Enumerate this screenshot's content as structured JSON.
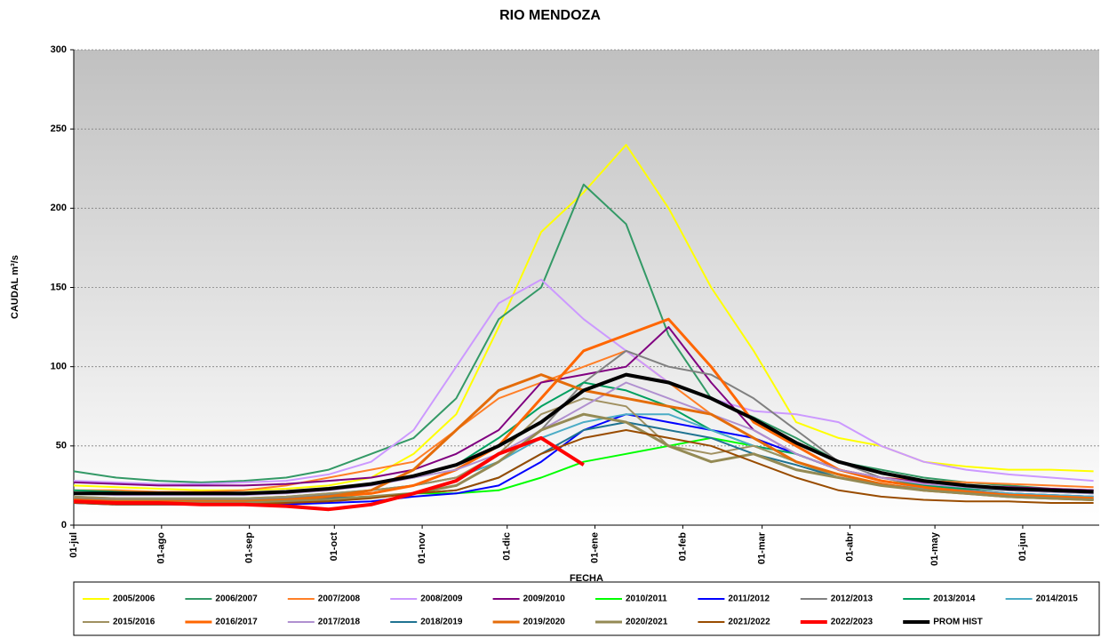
{
  "chart_data": {
    "type": "line",
    "title": "RIO MENDOZA",
    "x_label": "FECHA",
    "y_label": "CAUDAL m³/s",
    "x": [
      0,
      15,
      30,
      45,
      60,
      75,
      90,
      105,
      120,
      135,
      150,
      165,
      180,
      195,
      210,
      225,
      240,
      255,
      270,
      285,
      300,
      315,
      330,
      345,
      360
    ],
    "xlim": [
      0,
      362
    ],
    "xticks": [
      {
        "value": 0,
        "label": "01-jul"
      },
      {
        "value": 31,
        "label": "01-ago"
      },
      {
        "value": 62,
        "label": "01-sep"
      },
      {
        "value": 92,
        "label": "01-oct"
      },
      {
        "value": 123,
        "label": "01-nov"
      },
      {
        "value": 153,
        "label": "01-dic"
      },
      {
        "value": 184,
        "label": "01-ene"
      },
      {
        "value": 215,
        "label": "01-feb"
      },
      {
        "value": 243,
        "label": "01-mar"
      },
      {
        "value": 274,
        "label": "01-abr"
      },
      {
        "value": 304,
        "label": "01-may"
      },
      {
        "value": 335,
        "label": "01-jun"
      }
    ],
    "ylim": [
      0,
      300
    ],
    "yticks": [
      0,
      50,
      100,
      150,
      200,
      250,
      300
    ],
    "grid": true,
    "series": [
      {
        "name": "2005/2006",
        "color": "#ffff00",
        "width": 2,
        "values": [
          25,
          24,
          23,
          22,
          22,
          23,
          25,
          30,
          45,
          70,
          125,
          185,
          210,
          240,
          200,
          150,
          110,
          65,
          55,
          50,
          40,
          37,
          35,
          35,
          34
        ]
      },
      {
        "name": "2006/2007",
        "color": "#339966",
        "width": 2,
        "values": [
          34,
          30,
          28,
          27,
          28,
          30,
          35,
          45,
          55,
          80,
          130,
          150,
          215,
          190,
          120,
          80,
          68,
          55,
          40,
          35,
          30,
          27,
          25,
          23,
          22
        ]
      },
      {
        "name": "2007/2008",
        "color": "#ff7f27",
        "width": 2,
        "values": [
          22,
          22,
          21,
          21,
          22,
          25,
          30,
          35,
          40,
          60,
          80,
          90,
          100,
          110,
          90,
          70,
          55,
          45,
          35,
          30,
          28,
          27,
          26,
          25,
          24
        ]
      },
      {
        "name": "2008/2009",
        "color": "#cc99ff",
        "width": 2,
        "values": [
          28,
          27,
          26,
          26,
          27,
          28,
          32,
          40,
          60,
          100,
          140,
          155,
          130,
          110,
          90,
          80,
          72,
          70,
          65,
          50,
          40,
          35,
          32,
          30,
          28
        ]
      },
      {
        "name": "2009/2010",
        "color": "#800080",
        "width": 2,
        "values": [
          27,
          26,
          25,
          25,
          25,
          26,
          28,
          30,
          35,
          45,
          60,
          90,
          95,
          100,
          125,
          90,
          60,
          45,
          35,
          30,
          27,
          25,
          24,
          23,
          22
        ]
      },
      {
        "name": "2010/2011",
        "color": "#00ff00",
        "width": 2,
        "values": [
          15,
          14,
          14,
          14,
          14,
          15,
          17,
          18,
          20,
          20,
          22,
          30,
          40,
          45,
          50,
          55,
          50,
          40,
          30,
          25,
          22,
          20,
          18,
          17,
          16
        ]
      },
      {
        "name": "2011/2012",
        "color": "#0000ff",
        "width": 2,
        "values": [
          14,
          13,
          13,
          13,
          13,
          13,
          14,
          15,
          18,
          20,
          25,
          40,
          60,
          70,
          65,
          60,
          55,
          45,
          35,
          28,
          24,
          22,
          20,
          19,
          18
        ]
      },
      {
        "name": "2012/2013",
        "color": "#808080",
        "width": 2,
        "values": [
          17,
          16,
          16,
          16,
          16,
          17,
          19,
          22,
          25,
          30,
          40,
          60,
          90,
          110,
          100,
          95,
          80,
          60,
          40,
          30,
          25,
          22,
          20,
          19,
          18
        ]
      },
      {
        "name": "2013/2014",
        "color": "#00a060",
        "width": 2,
        "values": [
          22,
          21,
          20,
          20,
          20,
          21,
          23,
          26,
          30,
          38,
          55,
          75,
          90,
          85,
          75,
          60,
          50,
          45,
          35,
          28,
          25,
          23,
          22,
          21,
          20
        ]
      },
      {
        "name": "2014/2015",
        "color": "#4bacc6",
        "width": 2,
        "values": [
          18,
          17,
          17,
          17,
          17,
          18,
          20,
          22,
          25,
          30,
          40,
          55,
          65,
          70,
          70,
          60,
          50,
          40,
          32,
          26,
          23,
          21,
          20,
          19,
          18
        ]
      },
      {
        "name": "2015/2016",
        "color": "#a09060",
        "width": 2,
        "values": [
          18,
          17,
          17,
          17,
          17,
          18,
          20,
          22,
          25,
          30,
          45,
          70,
          80,
          75,
          50,
          45,
          50,
          40,
          30,
          25,
          22,
          20,
          19,
          18,
          17
        ]
      },
      {
        "name": "2016/2017",
        "color": "#ff6600",
        "width": 3,
        "values": [
          16,
          15,
          15,
          15,
          15,
          16,
          18,
          20,
          25,
          35,
          50,
          80,
          110,
          120,
          130,
          100,
          65,
          50,
          35,
          28,
          24,
          21,
          19,
          18,
          17
        ]
      },
      {
        "name": "2017/2018",
        "color": "#b090d0",
        "width": 2,
        "values": [
          20,
          19,
          19,
          19,
          19,
          20,
          22,
          25,
          30,
          35,
          45,
          60,
          75,
          90,
          80,
          70,
          60,
          45,
          35,
          30,
          26,
          24,
          22,
          21,
          20
        ]
      },
      {
        "name": "2018/2019",
        "color": "#1f7391",
        "width": 2,
        "values": [
          16,
          15,
          15,
          15,
          15,
          16,
          17,
          18,
          20,
          22,
          30,
          45,
          60,
          65,
          60,
          55,
          45,
          38,
          30,
          25,
          22,
          20,
          18,
          17,
          16
        ]
      },
      {
        "name": "2019/2020",
        "color": "#e46c0a",
        "width": 3,
        "values": [
          16,
          15,
          15,
          15,
          15,
          16,
          18,
          22,
          35,
          60,
          85,
          95,
          85,
          80,
          75,
          70,
          55,
          40,
          32,
          26,
          22,
          20,
          18,
          17,
          16
        ]
      },
      {
        "name": "2020/2021",
        "color": "#948a54",
        "width": 3,
        "values": [
          15,
          14,
          14,
          14,
          14,
          15,
          16,
          18,
          20,
          25,
          40,
          60,
          70,
          65,
          50,
          40,
          45,
          35,
          30,
          25,
          22,
          20,
          18,
          17,
          16
        ]
      },
      {
        "name": "2021/2022",
        "color": "#994c00",
        "width": 2,
        "values": [
          14,
          13,
          13,
          13,
          13,
          14,
          15,
          17,
          20,
          22,
          30,
          45,
          55,
          60,
          55,
          50,
          40,
          30,
          22,
          18,
          16,
          15,
          15,
          14,
          14
        ]
      },
      {
        "name": "2022/2023",
        "color": "#ff0000",
        "width": 4,
        "values": [
          15,
          14,
          14,
          13,
          13,
          12,
          10,
          13,
          20,
          28,
          45,
          55,
          38,
          null,
          null,
          null,
          null,
          null,
          null,
          null,
          null,
          null,
          null,
          null,
          null
        ]
      },
      {
        "name": "PROM HIST",
        "color": "#000000",
        "width": 4,
        "values": [
          20,
          20,
          20,
          20,
          20,
          21,
          23,
          26,
          31,
          38,
          50,
          65,
          85,
          95,
          90,
          80,
          67,
          52,
          40,
          33,
          28,
          25,
          23,
          22,
          21
        ]
      }
    ]
  }
}
